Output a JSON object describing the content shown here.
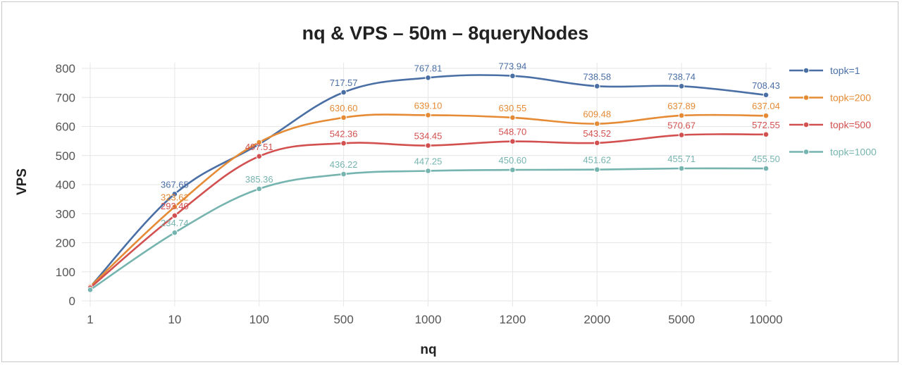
{
  "chart_data": {
    "type": "line",
    "title": "nq & VPS – 50m – 8queryNodes",
    "xlabel": "nq",
    "ylabel": "VPS",
    "categories": [
      "1",
      "10",
      "100",
      "500",
      "1000",
      "1200",
      "2000",
      "5000",
      "10000"
    ],
    "ylim": [
      0,
      800
    ],
    "yticks": [
      0,
      100,
      200,
      300,
      400,
      500,
      600,
      700,
      800
    ],
    "grid": true,
    "legend_position": "right",
    "series": [
      {
        "name": "topk=1",
        "color": "#4a6fa5",
        "values": [
          48.0,
          367.65,
          539.47,
          717.57,
          767.81,
          773.94,
          738.58,
          738.74,
          708.43
        ],
        "labels": [
          "",
          "367.65",
          "",
          "717.57",
          "767.81",
          "773.94",
          "738.58",
          "738.74",
          "708.43"
        ]
      },
      {
        "name": "topk=200",
        "color": "#e58b35",
        "values": [
          49.0,
          323.62,
          545.67,
          630.6,
          639.1,
          630.55,
          609.48,
          637.89,
          637.04
        ],
        "labels": [
          "",
          "323.62",
          "",
          "630.60",
          "639.10",
          "630.55",
          "609.48",
          "637.89",
          "637.04"
        ]
      },
      {
        "name": "topk=500",
        "color": "#d2504f",
        "values": [
          45.0,
          293.4,
          497.51,
          542.36,
          534.45,
          548.7,
          543.52,
          570.67,
          572.55
        ],
        "labels": [
          "",
          "293.40",
          "497.51",
          "542.36",
          "534.45",
          "548.70",
          "543.52",
          "570.67",
          "572.55"
        ]
      },
      {
        "name": "topk=1000",
        "color": "#76b4b0",
        "values": [
          38.0,
          234.74,
          385.36,
          436.22,
          447.25,
          450.6,
          451.62,
          455.71,
          455.5
        ],
        "labels": [
          "",
          "234.74",
          "385.36",
          "436.22",
          "447.25",
          "450.60",
          "451.62",
          "455.71",
          "455.50"
        ]
      }
    ]
  }
}
